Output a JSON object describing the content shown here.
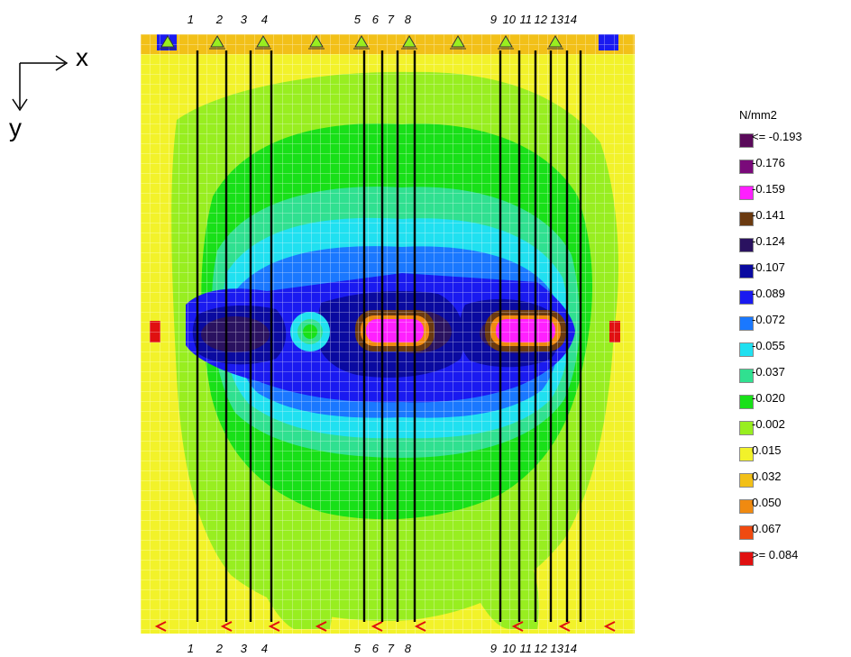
{
  "axes": {
    "x_label": "x",
    "y_label": "y"
  },
  "section_lines": [
    "1",
    "2",
    "3",
    "4",
    "5",
    "6",
    "7",
    "8",
    "9",
    "10",
    "11",
    "12",
    "13",
    "14"
  ],
  "legend": {
    "unit": "N/mm2",
    "items": [
      {
        "label": "<= -0.193",
        "color": "#5a0a5a"
      },
      {
        "label": "-0.176",
        "color": "#7a0a7a"
      },
      {
        "label": "-0.159",
        "color": "#ff20ff"
      },
      {
        "label": "-0.141",
        "color": "#6b3a10"
      },
      {
        "label": "-0.124",
        "color": "#2a1260"
      },
      {
        "label": "-0.107",
        "color": "#0a0aa0"
      },
      {
        "label": "-0.089",
        "color": "#1a1af0"
      },
      {
        "label": "-0.072",
        "color": "#1a78ff"
      },
      {
        "label": "-0.055",
        "color": "#20e0f0"
      },
      {
        "label": "-0.037",
        "color": "#30e090"
      },
      {
        "label": "-0.020",
        "color": "#18e018"
      },
      {
        "label": "-0.002",
        "color": "#98ee20"
      },
      {
        "label": "0.015",
        "color": "#f2f22a"
      },
      {
        "label": "0.032",
        "color": "#f2c018"
      },
      {
        "label": "0.050",
        "color": "#f08a10"
      },
      {
        "label": "0.067",
        "color": "#f04a10"
      },
      {
        "label": ">= 0.084",
        "color": "#e01010"
      }
    ]
  }
}
